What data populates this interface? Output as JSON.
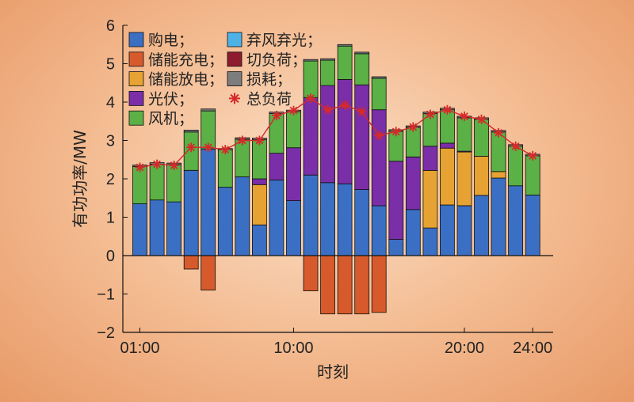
{
  "chart_data": {
    "type": "bar",
    "subtype": "stacked",
    "xlabel": "时刻",
    "ylabel": "有功功率/MW",
    "ylim": [
      -2,
      6
    ],
    "yticks": [
      -2,
      -1,
      0,
      1,
      2,
      3,
      4,
      5,
      6
    ],
    "xtick_hours": [
      1,
      10,
      20,
      24
    ],
    "xtick_labels": [
      "01:00",
      "10:00",
      "20:00",
      "24:00"
    ],
    "hours": [
      1,
      2,
      3,
      4,
      5,
      6,
      7,
      8,
      9,
      10,
      11,
      12,
      13,
      14,
      15,
      16,
      17,
      18,
      19,
      20,
      21,
      22,
      23,
      24
    ],
    "series": [
      {
        "key": "buy",
        "name": "购电；",
        "color": "#3a6fc4",
        "values": [
          1.35,
          1.45,
          1.4,
          2.22,
          2.78,
          1.78,
          2.05,
          0.8,
          1.97,
          1.43,
          2.1,
          1.9,
          1.87,
          1.72,
          1.3,
          0.42,
          1.2,
          0.72,
          1.32,
          1.3,
          1.57,
          2.02,
          1.82,
          1.58
        ]
      },
      {
        "key": "discharge",
        "name": "储能放电；",
        "color": "#e6a232",
        "values": [
          0,
          0,
          0,
          0,
          0,
          0,
          0,
          1.05,
          0,
          0,
          0,
          0,
          0,
          0,
          0,
          0,
          0,
          1.5,
          1.48,
          1.4,
          1.02,
          0.17,
          0,
          0
        ]
      },
      {
        "key": "pv",
        "name": "光伏；",
        "color": "#7a2ea8",
        "values": [
          0,
          0,
          0,
          0,
          0,
          0,
          0,
          0.15,
          0.7,
          1.38,
          2.02,
          2.53,
          2.72,
          2.73,
          2.5,
          2.04,
          1.37,
          0.63,
          0.13,
          0.02,
          0,
          0,
          0,
          0
        ]
      },
      {
        "key": "wind",
        "name": "风机；",
        "color": "#5bb046",
        "values": [
          0.97,
          0.93,
          0.97,
          1.0,
          0.99,
          0.97,
          0.98,
          1.02,
          1.03,
          0.94,
          0.95,
          0.66,
          0.87,
          0.81,
          0.82,
          0.78,
          0.77,
          0.85,
          0.87,
          0.87,
          0.96,
          1.03,
          1.03,
          1.02
        ]
      },
      {
        "key": "loss",
        "name": "损耗；",
        "color": "#7d7d7d",
        "values": [
          0.04,
          0.04,
          0.04,
          0.05,
          0.05,
          0.04,
          0.04,
          0.04,
          0.04,
          0.04,
          0.04,
          0.04,
          0.04,
          0.04,
          0.04,
          0.04,
          0.04,
          0.04,
          0.04,
          0.04,
          0.04,
          0.04,
          0.04,
          0.04
        ]
      },
      {
        "key": "charge",
        "name": "储能充电；",
        "color": "#d65a2c",
        "values": [
          0,
          0,
          0,
          -0.35,
          -0.9,
          0,
          0,
          0,
          0,
          0,
          -0.92,
          -1.52,
          -1.52,
          -1.52,
          -1.48,
          0,
          0,
          0,
          0,
          0,
          0,
          0,
          0,
          0
        ]
      },
      {
        "key": "curtail_wind",
        "name": "弃风弃光；",
        "color": "#4fb2e6",
        "values": [
          0,
          0,
          0,
          0,
          0,
          0,
          0,
          0,
          0,
          0,
          0,
          0,
          0,
          0,
          0,
          0,
          0,
          0,
          0,
          0,
          0,
          0,
          0,
          0
        ]
      },
      {
        "key": "shed_load",
        "name": "切负荷；",
        "color": "#8e1b2e",
        "values": [
          0,
          0,
          0,
          0,
          0,
          0,
          0,
          0,
          0,
          0,
          0,
          0,
          0,
          0,
          0,
          0,
          0,
          0,
          0,
          0,
          0,
          0,
          0,
          0
        ]
      }
    ],
    "total_load": {
      "name": "总负荷",
      "color": "#d42a2a",
      "values": [
        2.3,
        2.38,
        2.35,
        2.82,
        2.82,
        2.76,
        3.0,
        3.0,
        3.65,
        3.78,
        4.1,
        3.8,
        3.92,
        3.75,
        3.13,
        3.23,
        3.35,
        3.68,
        3.8,
        3.63,
        3.55,
        3.2,
        2.85,
        2.6
      ]
    },
    "legend": {
      "col1": [
        {
          "label": "购电；",
          "color": "#3a6fc4",
          "marker": "square"
        },
        {
          "label": "储能充电；",
          "color": "#d65a2c",
          "marker": "square"
        },
        {
          "label": "储能放电；",
          "color": "#e6a232",
          "marker": "square"
        },
        {
          "label": "光伏；",
          "color": "#7a2ea8",
          "marker": "square"
        },
        {
          "label": "风机；",
          "color": "#5bb046",
          "marker": "square"
        }
      ],
      "col2": [
        {
          "label": "弃风弃光；",
          "color": "#4fb2e6",
          "marker": "square"
        },
        {
          "label": "切负荷；",
          "color": "#8e1b2e",
          "marker": "square"
        },
        {
          "label": "损耗；",
          "color": "#7d7d7d",
          "marker": "square"
        },
        {
          "label": "总负荷",
          "color": "#d42a2a",
          "marker": "star"
        }
      ],
      "placement": "top-left"
    }
  }
}
